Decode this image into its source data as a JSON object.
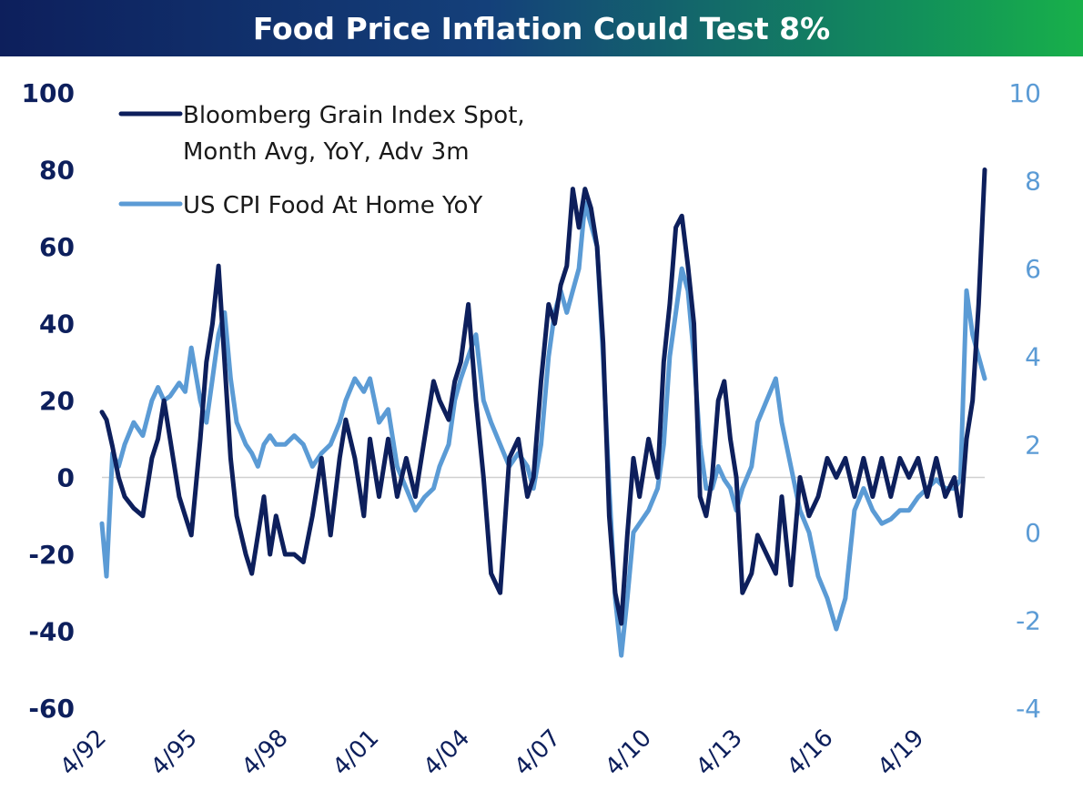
{
  "chart_data": {
    "type": "line",
    "title": "Food Price Inflation Could Test 8%",
    "x_tick_labels": [
      "4/92",
      "4/95",
      "4/98",
      "4/01",
      "4/04",
      "4/07",
      "4/10",
      "4/13",
      "4/16",
      "4/19"
    ],
    "x_range": [
      1992.25,
      2021.4
    ],
    "left_axis": {
      "ticks": [
        100,
        80,
        60,
        40,
        20,
        0,
        -20,
        -40,
        -60
      ],
      "range": [
        -60,
        100
      ],
      "color": "#0d1f5c"
    },
    "right_axis": {
      "ticks": [
        10,
        8,
        6,
        4,
        2,
        0,
        -2,
        -4
      ],
      "range": [
        -4,
        10
      ],
      "color": "#5b9bd5"
    },
    "grid": false,
    "legend_position": "top-left",
    "series": [
      {
        "name": "Bloomberg Grain Index Spot, Month Avg, YoY, Adv 3m",
        "legend_lines": [
          "Bloomberg Grain Index Spot,",
          "Month Avg, YoY, Adv 3m"
        ],
        "axis": "left",
        "color": "#0d1f5c",
        "x": [
          1992.25,
          1992.4,
          1992.6,
          1992.8,
          1993.0,
          1993.3,
          1993.6,
          1993.9,
          1994.1,
          1994.3,
          1994.5,
          1994.8,
          1995.0,
          1995.2,
          1995.5,
          1995.7,
          1995.9,
          1996.1,
          1996.3,
          1996.5,
          1996.7,
          1997.0,
          1997.2,
          1997.4,
          1997.6,
          1997.8,
          1998.0,
          1998.3,
          1998.6,
          1998.9,
          1999.2,
          1999.5,
          1999.8,
          2000.1,
          2000.3,
          2000.6,
          2000.9,
          2001.1,
          2001.4,
          2001.7,
          2002.0,
          2002.3,
          2002.6,
          2002.9,
          2003.2,
          2003.4,
          2003.7,
          2003.9,
          2004.1,
          2004.35,
          2004.6,
          2004.85,
          2005.1,
          2005.4,
          2005.7,
          2006.0,
          2006.3,
          2006.5,
          2006.75,
          2007.0,
          2007.2,
          2007.4,
          2007.6,
          2007.8,
          2008.0,
          2008.2,
          2008.4,
          2008.6,
          2008.8,
          2009.0,
          2009.2,
          2009.4,
          2009.6,
          2009.8,
          2010.0,
          2010.3,
          2010.6,
          2010.8,
          2011.0,
          2011.2,
          2011.4,
          2011.6,
          2011.8,
          2012.0,
          2012.2,
          2012.4,
          2012.6,
          2012.8,
          2013.0,
          2013.2,
          2013.4,
          2013.7,
          2013.9,
          2014.2,
          2014.5,
          2014.7,
          2015.0,
          2015.3,
          2015.6,
          2015.9,
          2016.2,
          2016.5,
          2016.8,
          2017.1,
          2017.4,
          2017.7,
          2018.0,
          2018.3,
          2018.6,
          2018.9,
          2019.2,
          2019.5,
          2019.8,
          2020.1,
          2020.4,
          2020.6,
          2020.8,
          2021.0,
          2021.2,
          2021.4
        ],
        "y": [
          17,
          15,
          8,
          0,
          -5,
          -8,
          -10,
          5,
          10,
          20,
          10,
          -5,
          -10,
          -15,
          10,
          30,
          40,
          55,
          30,
          5,
          -10,
          -20,
          -25,
          -15,
          -5,
          -20,
          -10,
          -20,
          -20,
          -22,
          -10,
          5,
          -15,
          5,
          15,
          5,
          -10,
          10,
          -5,
          10,
          -5,
          5,
          -5,
          10,
          25,
          20,
          15,
          25,
          30,
          45,
          20,
          0,
          -25,
          -30,
          5,
          10,
          -5,
          0,
          25,
          45,
          40,
          50,
          55,
          75,
          65,
          75,
          70,
          60,
          35,
          -10,
          -30,
          -38,
          -15,
          5,
          -5,
          10,
          0,
          30,
          45,
          65,
          68,
          55,
          40,
          -5,
          -10,
          0,
          20,
          25,
          10,
          0,
          -30,
          -25,
          -15,
          -20,
          -25,
          -5,
          -28,
          0,
          -10,
          -5,
          5,
          0,
          5,
          -5,
          5,
          -5,
          5,
          -5,
          5,
          0,
          5,
          -5,
          5,
          -5,
          0,
          -10,
          10,
          20,
          45,
          80
        ]
      },
      {
        "name": "US CPI Food At Home YoY",
        "legend_lines": [
          "US CPI Food At Home YoY"
        ],
        "axis": "right",
        "color": "#5b9bd5",
        "x": [
          1992.25,
          1992.4,
          1992.6,
          1992.8,
          1993.0,
          1993.3,
          1993.6,
          1993.9,
          1994.1,
          1994.3,
          1994.5,
          1994.8,
          1995.0,
          1995.2,
          1995.5,
          1995.7,
          1995.9,
          1996.1,
          1996.3,
          1996.5,
          1996.7,
          1997.0,
          1997.2,
          1997.4,
          1997.6,
          1997.8,
          1998.0,
          1998.3,
          1998.6,
          1998.9,
          1999.2,
          1999.5,
          1999.8,
          2000.1,
          2000.3,
          2000.6,
          2000.9,
          2001.1,
          2001.4,
          2001.7,
          2002.0,
          2002.3,
          2002.6,
          2002.9,
          2003.2,
          2003.4,
          2003.7,
          2003.9,
          2004.1,
          2004.35,
          2004.6,
          2004.85,
          2005.1,
          2005.4,
          2005.7,
          2006.0,
          2006.3,
          2006.5,
          2006.75,
          2007.0,
          2007.2,
          2007.4,
          2007.6,
          2007.8,
          2008.0,
          2008.2,
          2008.4,
          2008.6,
          2008.8,
          2009.0,
          2009.2,
          2009.4,
          2009.6,
          2009.8,
          2010.0,
          2010.3,
          2010.6,
          2010.8,
          2011.0,
          2011.2,
          2011.4,
          2011.6,
          2011.8,
          2012.0,
          2012.2,
          2012.4,
          2012.6,
          2012.8,
          2013.0,
          2013.2,
          2013.4,
          2013.7,
          2013.9,
          2014.2,
          2014.5,
          2014.7,
          2015.0,
          2015.3,
          2015.6,
          2015.9,
          2016.2,
          2016.5,
          2016.8,
          2017.1,
          2017.4,
          2017.7,
          2018.0,
          2018.3,
          2018.6,
          2018.9,
          2019.2,
          2019.5,
          2019.8,
          2020.1,
          2020.4,
          2020.6,
          2020.8,
          2021.0,
          2021.2,
          2021.4
        ],
        "y": [
          0.2,
          -1.0,
          1.8,
          1.5,
          2.0,
          2.5,
          2.2,
          3.0,
          3.3,
          3.0,
          3.1,
          3.4,
          3.2,
          4.2,
          3.0,
          2.5,
          3.5,
          4.5,
          5.0,
          3.5,
          2.5,
          2.0,
          1.8,
          1.5,
          2.0,
          2.2,
          2.0,
          2.0,
          2.2,
          2.0,
          1.5,
          1.8,
          2.0,
          2.5,
          3.0,
          3.5,
          3.2,
          3.5,
          2.5,
          2.8,
          1.5,
          1.0,
          0.5,
          0.8,
          1.0,
          1.5,
          2.0,
          3.0,
          3.5,
          4.0,
          4.5,
          3.0,
          2.5,
          2.0,
          1.5,
          1.8,
          1.5,
          1.0,
          2.0,
          4.0,
          5.0,
          5.5,
          5.0,
          5.5,
          6.0,
          7.5,
          7.0,
          6.5,
          4.0,
          1.0,
          -1.5,
          -2.8,
          -1.5,
          0,
          0.2,
          0.5,
          1.0,
          2.0,
          4.0,
          5.0,
          6.0,
          5.5,
          4.0,
          2.0,
          1.0,
          1.0,
          1.5,
          1.2,
          1.0,
          0.5,
          1.0,
          1.5,
          2.5,
          3.0,
          3.5,
          2.5,
          1.5,
          0.5,
          0,
          -1.0,
          -1.5,
          -2.2,
          -1.5,
          0.5,
          1.0,
          0.5,
          0.2,
          0.3,
          0.5,
          0.5,
          0.8,
          1.0,
          1.2,
          1.0,
          1.0,
          1.2,
          5.5,
          4.5,
          4.0,
          3.5
        ]
      }
    ]
  }
}
